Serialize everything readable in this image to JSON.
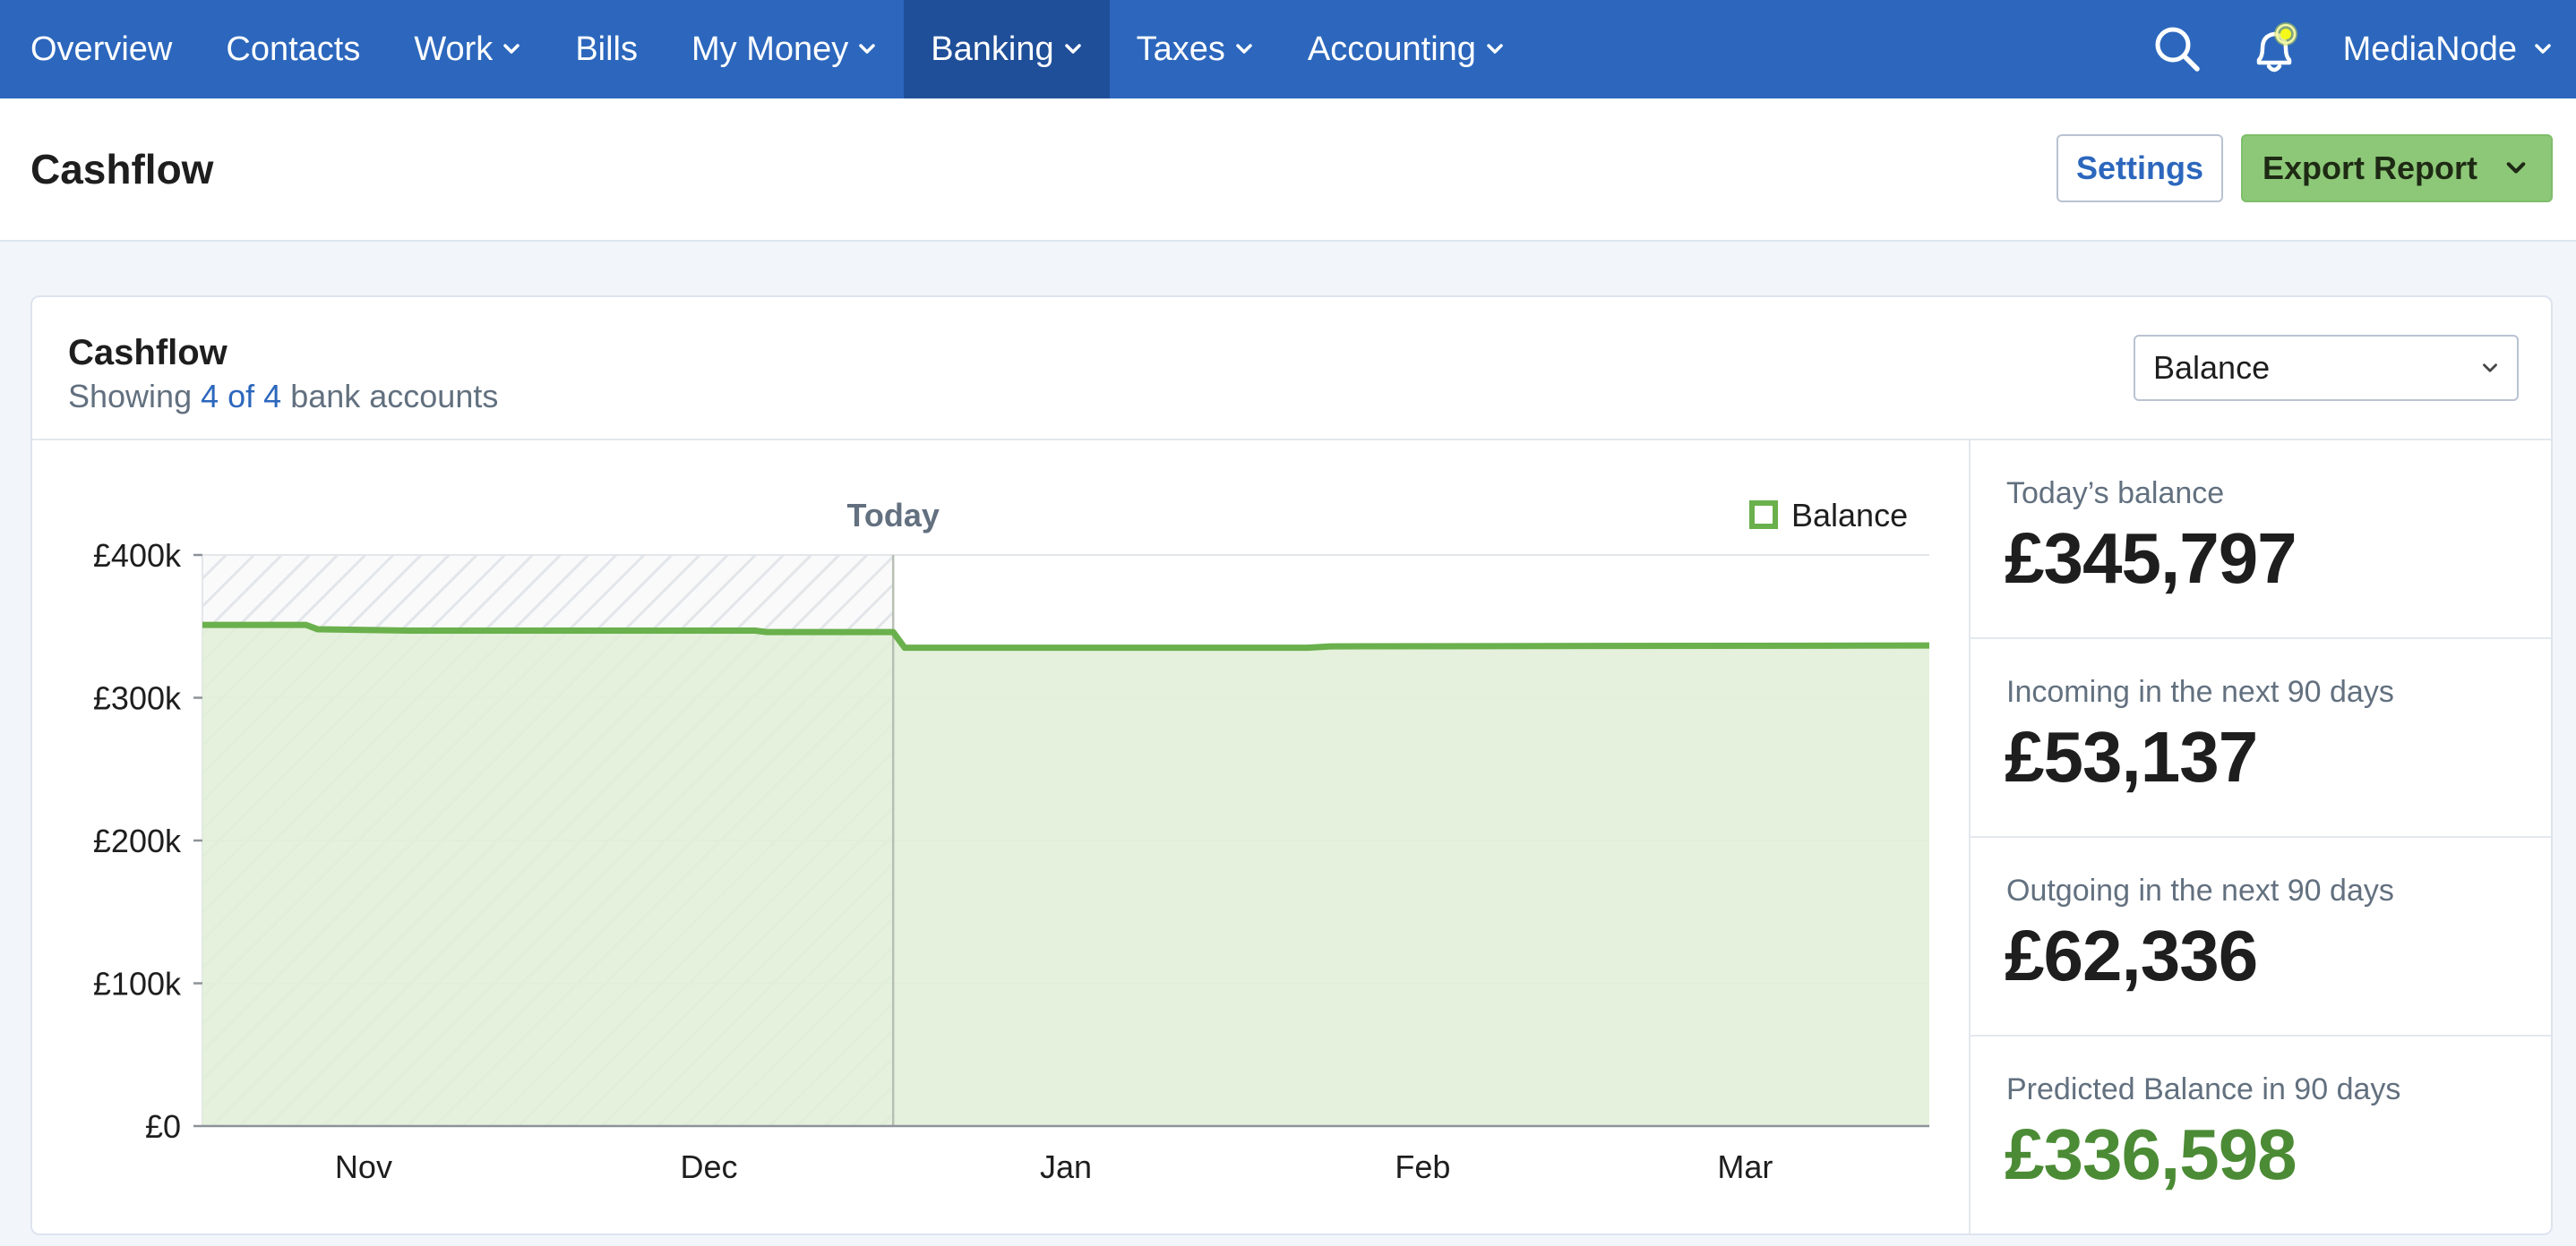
{
  "nav": {
    "items": [
      {
        "label": "Overview",
        "dropdown": false,
        "active": false
      },
      {
        "label": "Contacts",
        "dropdown": false,
        "active": false
      },
      {
        "label": "Work",
        "dropdown": true,
        "active": false
      },
      {
        "label": "Bills",
        "dropdown": false,
        "active": false
      },
      {
        "label": "My Money",
        "dropdown": true,
        "active": false
      },
      {
        "label": "Banking",
        "dropdown": true,
        "active": true
      },
      {
        "label": "Taxes",
        "dropdown": true,
        "active": false
      },
      {
        "label": "Accounting",
        "dropdown": true,
        "active": false
      }
    ],
    "account_name": "MediaNode",
    "icons": [
      "search-icon",
      "bell-icon"
    ]
  },
  "header": {
    "title": "Cashflow",
    "settings_label": "Settings",
    "export_label": "Export Report"
  },
  "card": {
    "title": "Cashflow",
    "subtitle_prefix": "Showing ",
    "subtitle_link": "4 of 4",
    "subtitle_suffix": " bank accounts",
    "select_value": "Balance"
  },
  "stats": [
    {
      "label": "Today’s balance",
      "value": "£345,797",
      "highlight": false
    },
    {
      "label": "Incoming in the next 90 days",
      "value": "£53,137",
      "highlight": false
    },
    {
      "label": "Outgoing in the next 90 days",
      "value": "£62,336",
      "highlight": false
    },
    {
      "label": "Predicted Balance in 90 days",
      "value": "£336,598",
      "highlight": true
    }
  ],
  "colors": {
    "nav_bg": "#2c67bd",
    "nav_active": "#1f4f99",
    "accent_blue": "#2c67bd",
    "export_green": "#8dc878",
    "line_green": "#6ab04c",
    "fill_green": "#e0efd6",
    "predicted_green": "#4b8b35"
  },
  "chart_data": {
    "type": "area",
    "today_label": "Today",
    "legend": [
      {
        "name": "Balance",
        "color": "#6ab04c"
      }
    ],
    "legend_position": "top-right",
    "y_ticks": [
      {
        "label": "£400k",
        "value": 400000
      },
      {
        "label": "£300k",
        "value": 300000
      },
      {
        "label": "£200k",
        "value": 200000
      },
      {
        "label": "£100k",
        "value": 100000
      },
      {
        "label": "£0",
        "value": 0
      }
    ],
    "ylim": [
      0,
      400000
    ],
    "x_ticks": [
      {
        "label": "Nov",
        "day": 18
      },
      {
        "label": "Dec",
        "day": 48
      },
      {
        "label": "Jan",
        "day": 79
      },
      {
        "label": "Feb",
        "day": 110
      },
      {
        "label": "Mar",
        "day": 138
      }
    ],
    "xlim": [
      4,
      154
    ],
    "today_day": 64,
    "grid": true,
    "series": [
      {
        "name": "Balance",
        "points": [
          {
            "day": 4,
            "value": 351000
          },
          {
            "day": 13,
            "value": 351000
          },
          {
            "day": 14,
            "value": 348000
          },
          {
            "day": 22,
            "value": 347000
          },
          {
            "day": 52,
            "value": 347000
          },
          {
            "day": 53,
            "value": 346000
          },
          {
            "day": 64,
            "value": 346000
          },
          {
            "day": 65,
            "value": 335000
          },
          {
            "day": 100,
            "value": 335000
          },
          {
            "day": 102,
            "value": 336000
          },
          {
            "day": 148,
            "value": 336500
          },
          {
            "day": 154,
            "value": 336600
          }
        ]
      }
    ]
  }
}
